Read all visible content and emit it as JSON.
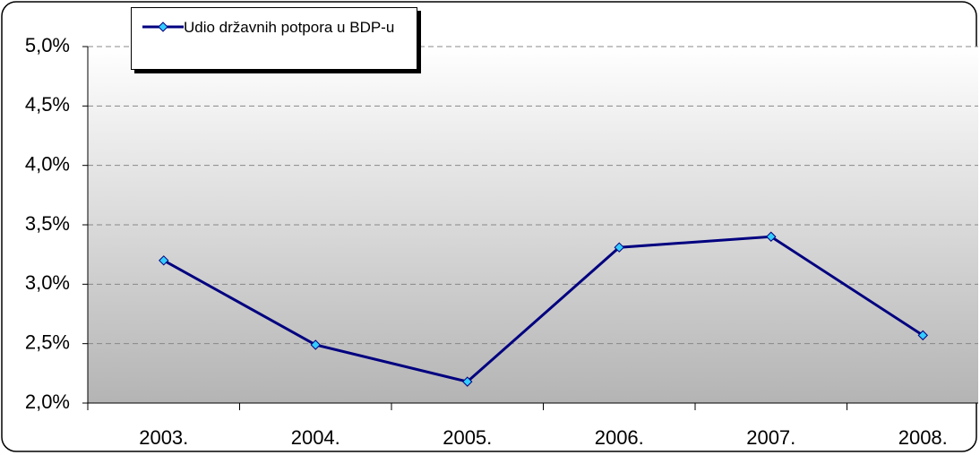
{
  "chart_data": {
    "type": "line",
    "categories": [
      "2003.",
      "2004.",
      "2005.",
      "2006.",
      "2007.",
      "2008."
    ],
    "series": [
      {
        "name": "Udio državnih potpora u BDP-u",
        "color": "#000080",
        "marker_color": "#33ccff",
        "values": [
          3.2,
          2.49,
          2.18,
          3.31,
          3.4,
          2.57
        ]
      }
    ],
    "ylim": [
      2.0,
      5.0
    ],
    "yticks": [
      {
        "value": 2.0,
        "label": "2,0%"
      },
      {
        "value": 2.5,
        "label": "2,5%"
      },
      {
        "value": 3.0,
        "label": "3,0%"
      },
      {
        "value": 3.5,
        "label": "3,5%"
      },
      {
        "value": 4.0,
        "label": "4,0%"
      },
      {
        "value": 4.5,
        "label": "4,5%"
      },
      {
        "value": 5.0,
        "label": "5,0%"
      }
    ],
    "grid": true,
    "legend": "top-left"
  }
}
